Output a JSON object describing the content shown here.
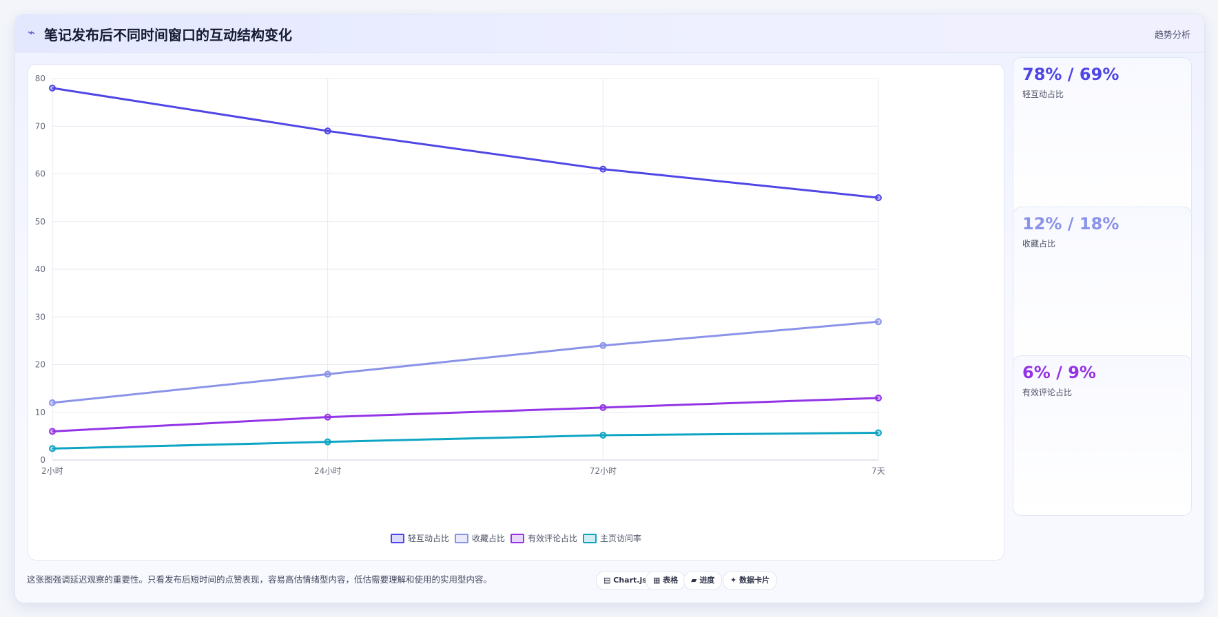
{
  "header": {
    "icon": "trend-icon",
    "icon_glyph": "⌁",
    "title": "笔记发布后不同时间窗口的互动结构变化",
    "tag": "趋势分析"
  },
  "chart_data": {
    "type": "line",
    "x": [
      "2小时",
      "24小时",
      "72小时",
      "7天"
    ],
    "series": [
      {
        "name": "轻互动占比",
        "values": [
          78,
          69,
          61,
          55
        ],
        "color": "#4f46e5"
      },
      {
        "name": "收藏占比",
        "values": [
          12,
          18,
          24,
          29
        ],
        "color": "#8b93e8"
      },
      {
        "name": "有效评论占比",
        "values": [
          6,
          9,
          11,
          13
        ],
        "color": "#9334e6"
      },
      {
        "name": "主页访问率",
        "values": [
          2.4,
          3.8,
          5.2,
          5.7
        ],
        "color": "#0ea5c4"
      }
    ],
    "ylim": [
      0,
      80
    ],
    "yticks": [
      0,
      10,
      20,
      30,
      40,
      50,
      60,
      70,
      80
    ],
    "grid": true,
    "legend": "bottom"
  },
  "stats": [
    {
      "value": "78% / 69%",
      "label": "轻互动占比",
      "color": "#4f46e5"
    },
    {
      "value": "12% / 18%",
      "label": "收藏占比",
      "color": "#8b93e8"
    },
    {
      "value": "6% / 9%",
      "label": "有效评论占比",
      "color": "#9334e6"
    }
  ],
  "footer": {
    "note": "这张图强调延迟观察的重要性。只看发布后短时间的点赞表现，容易高估情绪型内容，低估需要理解和使用的实用型内容。",
    "pills": [
      {
        "icon": "chart-icon",
        "glyph": "▤",
        "label": "Chart.js"
      },
      {
        "icon": "table-icon",
        "glyph": "▦",
        "label": "表格"
      },
      {
        "icon": "progress-icon",
        "glyph": "▰",
        "label": "进度"
      },
      {
        "icon": "card-icon",
        "glyph": "✦",
        "label": "数据卡片"
      }
    ]
  }
}
